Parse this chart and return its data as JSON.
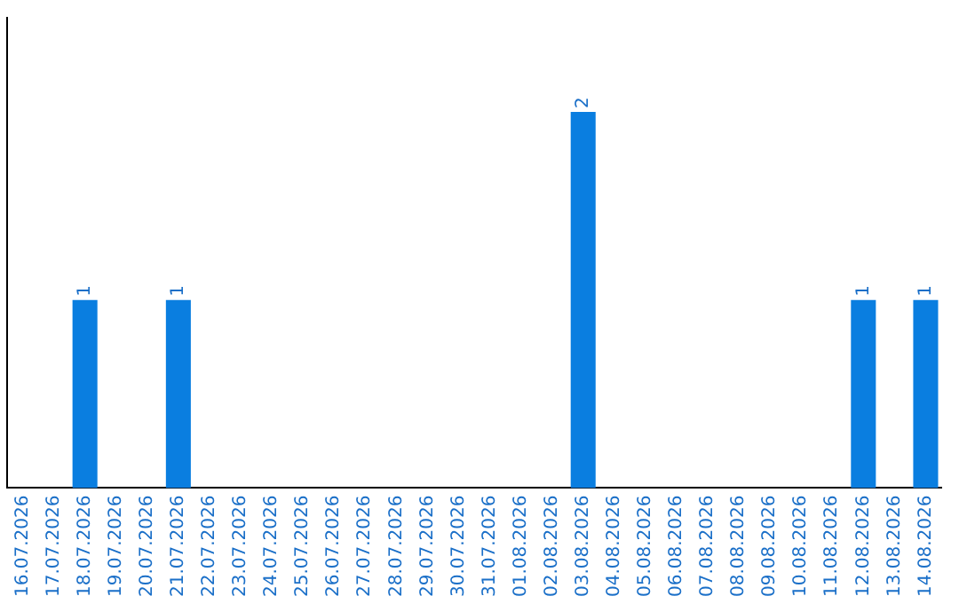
{
  "chart_data": {
    "type": "bar",
    "categories": [
      "16.07.2026",
      "17.07.2026",
      "18.07.2026",
      "19.07.2026",
      "20.07.2026",
      "21.07.2026",
      "22.07.2026",
      "23.07.2026",
      "24.07.2026",
      "25.07.2026",
      "26.07.2026",
      "27.07.2026",
      "28.07.2026",
      "29.07.2026",
      "30.07.2026",
      "31.07.2026",
      "01.08.2026",
      "02.08.2026",
      "03.08.2026",
      "04.08.2026",
      "05.08.2026",
      "06.08.2026",
      "07.08.2026",
      "08.08.2026",
      "09.08.2026",
      "10.08.2026",
      "11.08.2026",
      "12.08.2026",
      "13.08.2026",
      "14.08.2026"
    ],
    "values": [
      0,
      0,
      1,
      0,
      0,
      1,
      0,
      0,
      0,
      0,
      0,
      0,
      0,
      0,
      0,
      0,
      0,
      0,
      2,
      0,
      0,
      0,
      0,
      0,
      0,
      0,
      0,
      1,
      0,
      1
    ],
    "color": "#0a7ee0",
    "value_labels": [
      null,
      null,
      "1",
      null,
      null,
      "1",
      null,
      null,
      null,
      null,
      null,
      null,
      null,
      null,
      null,
      null,
      null,
      null,
      "2",
      null,
      null,
      null,
      null,
      null,
      null,
      null,
      null,
      "1",
      null,
      "1"
    ],
    "tick_labels": "x",
    "grid": false,
    "legend": false
  }
}
